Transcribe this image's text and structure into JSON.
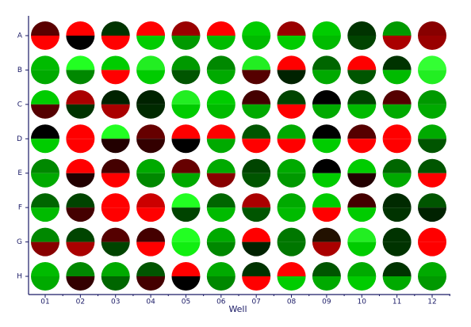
{
  "chart_data": {
    "type": "plate",
    "rows": [
      "A",
      "B",
      "C",
      "D",
      "E",
      "F",
      "G",
      "H"
    ],
    "columns": [
      "01",
      "02",
      "03",
      "04",
      "05",
      "06",
      "07",
      "08",
      "09",
      "10",
      "11",
      "12"
    ],
    "x_label": "Well",
    "top": [
      [
        "#5a0000",
        "#ff0000",
        "#003300",
        "#ff0000",
        "#990000",
        "#ff0000",
        "#00cc00",
        "#990000",
        "#00cc00",
        "#003300",
        "#009900",
        "#880000"
      ],
      [
        "#00bb00",
        "#22ff22",
        "#00cc00",
        "#22ee22",
        "#009900",
        "#008800",
        "#22ee22",
        "#ff0000",
        "#006600",
        "#ff0000",
        "#003300",
        "#33ff33"
      ],
      [
        "#00cc00",
        "#aa0000",
        "#002200",
        "#002200",
        "#22ee22",
        "#00cc00",
        "#440000",
        "#004400",
        "#000000",
        "#004400",
        "#550000",
        "#009900"
      ],
      [
        "#000000",
        "#ff0000",
        "#22ff22",
        "#660000",
        "#ff0000",
        "#ff0000",
        "#005500",
        "#00aa00",
        "#000000",
        "#550000",
        "#ff0000",
        "#00aa00"
      ],
      [
        "#008800",
        "#ff0000",
        "#440000",
        "#00aa00",
        "#660000",
        "#00aa00",
        "#004400",
        "#00aa00",
        "#000000",
        "#00cc00",
        "#006600",
        "#005500"
      ],
      [
        "#006600",
        "#004400",
        "#ff0000",
        "#cc0000",
        "#22ff22",
        "#006600",
        "#aa0000",
        "#00aa00",
        "#00cc00",
        "#440000",
        "#002a00",
        "#005500"
      ],
      [
        "#008800",
        "#004400",
        "#550000",
        "#440000",
        "#22ff22",
        "#00aa00",
        "#ff0000",
        "#007700",
        "#221100",
        "#22ee22",
        "#003300",
        "#ff0000"
      ],
      [
        "#00bb00",
        "#008800",
        "#00aa00",
        "#005500",
        "#ff0000",
        "#00aa00",
        "#003300",
        "#ff0000",
        "#005500",
        "#00aa00",
        "#003300",
        "#00aa00"
      ]
    ],
    "bottom": [
      [
        "#ff0000",
        "#000000",
        "#ff0000",
        "#00cc00",
        "#009900",
        "#00bb00",
        "#00bb00",
        "#00cc00",
        "#00bb00",
        "#004400",
        "#aa0000",
        "#990000"
      ],
      [
        "#00aa00",
        "#008800",
        "#ff0000",
        "#00cc00",
        "#005500",
        "#00aa00",
        "#550000",
        "#002200",
        "#00aa00",
        "#005500",
        "#00bb00",
        "#22ee22"
      ],
      [
        "#550000",
        "#003300",
        "#aa0000",
        "#002a00",
        "#00cc00",
        "#00bb00",
        "#00aa00",
        "#ff0000",
        "#00aa00",
        "#00bb00",
        "#00aa00",
        "#00aa00"
      ],
      [
        "#00cc00",
        "#ff0000",
        "#220000",
        "#330000",
        "#000000",
        "#00aa00",
        "#ff0000",
        "#ff0000",
        "#00cc00",
        "#ff0000",
        "#ff0000",
        "#005500"
      ],
      [
        "#00aa00",
        "#220000",
        "#ff0000",
        "#008800",
        "#00aa00",
        "#880000",
        "#005500",
        "#009900",
        "#00cc00",
        "#220000",
        "#00aa00",
        "#ff0000"
      ],
      [
        "#00bb00",
        "#440000",
        "#ff0000",
        "#ff0000",
        "#004400",
        "#00bb00",
        "#005500",
        "#00bb00",
        "#ff0000",
        "#00cc00",
        "#003300",
        "#002200"
      ],
      [
        "#880000",
        "#aa0000",
        "#004400",
        "#ff0000",
        "#11ee11",
        "#008800",
        "#002200",
        "#007700",
        "#aa0000",
        "#00cc00",
        "#003300",
        "#ff0000"
      ],
      [
        "#00aa00",
        "#330000",
        "#006600",
        "#440000",
        "#000000",
        "#008800",
        "#ff0000",
        "#00cc00",
        "#00aa00",
        "#00cc00",
        "#00aa00",
        "#009900"
      ]
    ]
  }
}
